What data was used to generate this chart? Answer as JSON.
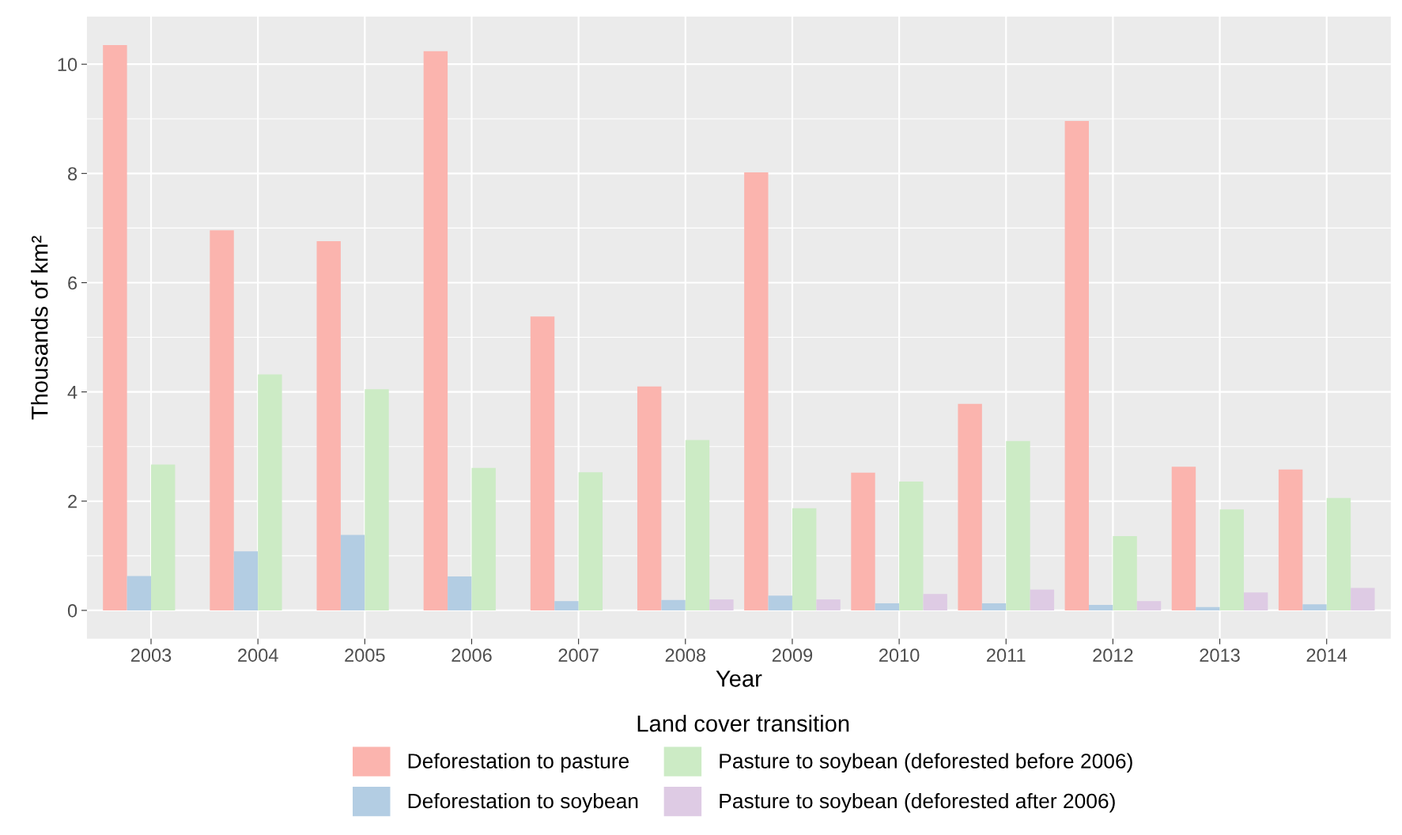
{
  "chart_data": {
    "type": "bar",
    "xlabel": "Year",
    "ylabel": "Thousands of km²",
    "legend_title": "Land cover transition",
    "categories": [
      "2003",
      "2004",
      "2005",
      "2006",
      "2007",
      "2008",
      "2009",
      "2010",
      "2011",
      "2012",
      "2013",
      "2014"
    ],
    "series": [
      {
        "name": "Deforestation to pasture",
        "color": "#fbb4ae",
        "values": [
          10.35,
          6.96,
          6.76,
          10.24,
          5.38,
          4.1,
          8.02,
          2.52,
          3.78,
          8.96,
          2.63,
          2.58
        ]
      },
      {
        "name": "Deforestation to soybean",
        "color": "#b3cde3",
        "values": [
          0.63,
          1.08,
          1.38,
          0.62,
          0.17,
          0.19,
          0.27,
          0.13,
          0.13,
          0.1,
          0.06,
          0.11
        ]
      },
      {
        "name": "Pasture to soybean (deforested before 2006)",
        "color": "#ccebc5",
        "values": [
          2.67,
          4.32,
          4.05,
          2.61,
          2.53,
          3.12,
          1.87,
          2.36,
          3.1,
          1.36,
          1.85,
          2.06
        ]
      },
      {
        "name": "Pasture to soybean (deforested after 2006)",
        "color": "#decbe4",
        "values": [
          null,
          null,
          null,
          null,
          null,
          0.2,
          0.2,
          0.3,
          0.38,
          0.17,
          0.33,
          0.41
        ]
      }
    ],
    "ylim": [
      -0.52,
      10.87
    ],
    "yticks": [
      0,
      2,
      4,
      6,
      8,
      10
    ],
    "grid": true,
    "legend": "bottom"
  }
}
